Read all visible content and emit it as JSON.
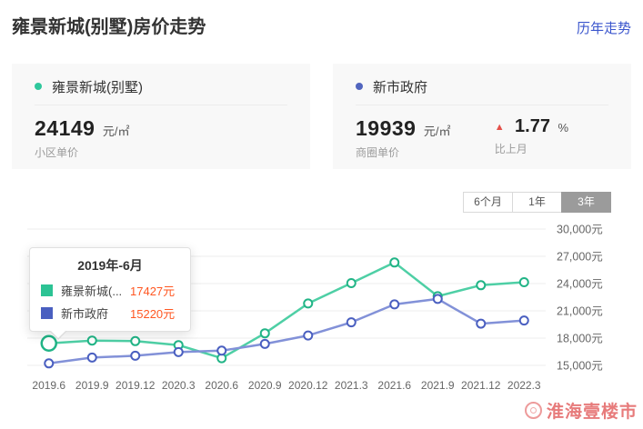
{
  "header": {
    "title": "雍景新城(别墅)房价走势",
    "link": "历年走势"
  },
  "cards": [
    {
      "name": "雍景新城(别墅)",
      "dot_color": "#2fc79c",
      "price": "24149",
      "unit": "元/㎡",
      "caption": "小区单价"
    },
    {
      "name": "新市政府",
      "dot_color": "#5165be",
      "price": "19939",
      "unit": "元/㎡",
      "caption": "商圈单价",
      "change_icon": "▲",
      "change_color": "#e4504a",
      "change": "1.77",
      "change_unit": "%",
      "change_caption": "比上月"
    }
  ],
  "tabs": [
    {
      "label": "6个月",
      "active": false
    },
    {
      "label": "1年",
      "active": false
    },
    {
      "label": "3年",
      "active": true
    }
  ],
  "tooltip": {
    "title": "2019年-6月",
    "value_color": "#ff5722",
    "rows": [
      {
        "swatch": "#2cc394",
        "name": "雍景新城(...",
        "value": "17427元"
      },
      {
        "swatch": "#4a5fc0",
        "name": "新市政府",
        "value": "15220元"
      }
    ]
  },
  "chart_data": {
    "type": "line",
    "x": [
      "2019.6",
      "2019.9",
      "2019.12",
      "2020.3",
      "2020.6",
      "2020.9",
      "2020.12",
      "2021.3",
      "2021.6",
      "2021.9",
      "2021.12",
      "2022.3"
    ],
    "series": [
      {
        "name": "雍景新城(别墅)",
        "color": "#21b486",
        "line_color": "#4ecfa5",
        "values": [
          17427,
          17730,
          17670,
          17230,
          15790,
          18530,
          21810,
          24050,
          26320,
          22610,
          23820,
          24149
        ]
      },
      {
        "name": "新市政府",
        "color": "#4a5fc0",
        "line_color": "#8291d8",
        "values": [
          15220,
          15860,
          16060,
          16460,
          16620,
          17360,
          18290,
          19740,
          21710,
          22310,
          19592,
          19939
        ]
      }
    ],
    "ylim": [
      15000,
      30000
    ],
    "y_ticks": [
      {
        "value": 30000,
        "label": "30,000元"
      },
      {
        "value": 27000,
        "label": "27,000元"
      },
      {
        "value": 24000,
        "label": "24,000元"
      },
      {
        "value": 21000,
        "label": "21,000元"
      },
      {
        "value": 18000,
        "label": "18,000元"
      },
      {
        "value": 15000,
        "label": "15,000元"
      }
    ],
    "y_axis_side": "right",
    "grid": true,
    "legend_position": "none",
    "emphasis": {
      "series": 0,
      "index": 0
    }
  },
  "watermark": {
    "text": "淮海壹楼市"
  }
}
